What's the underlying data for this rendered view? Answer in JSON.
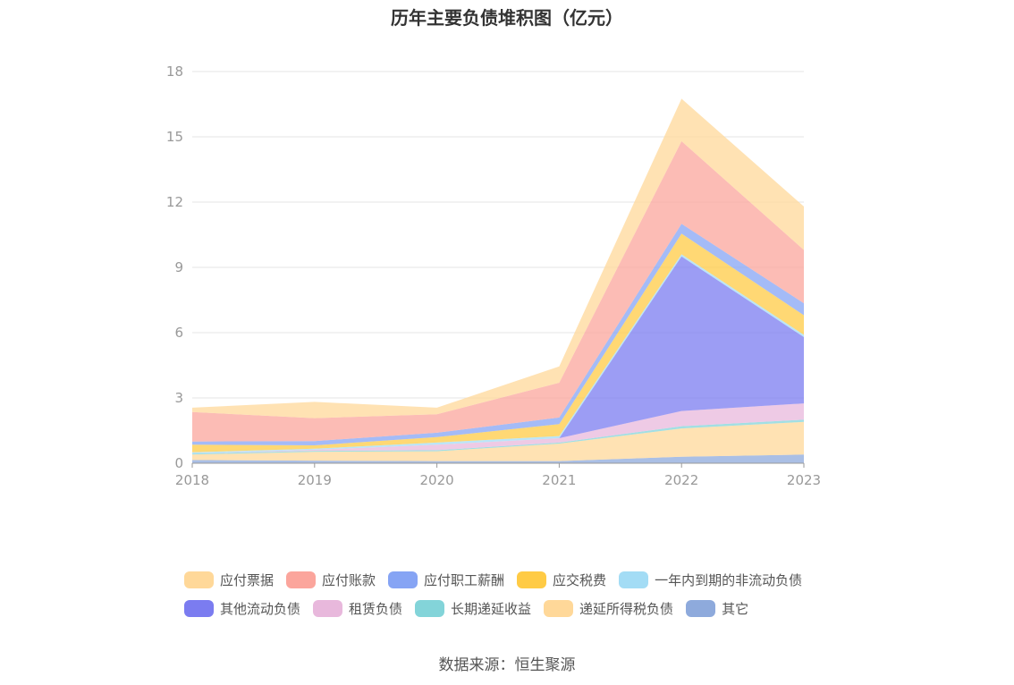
{
  "title": "历年主要负债堆积图（亿元）",
  "source": "数据来源：恒生聚源",
  "chart_data": {
    "type": "area",
    "stacked": true,
    "x": [
      "2018",
      "2019",
      "2020",
      "2021",
      "2022",
      "2023"
    ],
    "ylim": [
      0,
      18
    ],
    "yticks": [
      "0",
      "3",
      "6",
      "9",
      "12",
      "15",
      "18"
    ],
    "grid": true,
    "legend_position": "bottom",
    "series": [
      {
        "name": "其它",
        "color": "#8eaadc",
        "values": [
          0.15,
          0.12,
          0.1,
          0.1,
          0.3,
          0.4
        ]
      },
      {
        "name": "递延所得税负债",
        "color": "#ffd899",
        "values": [
          0.25,
          0.4,
          0.45,
          0.8,
          1.3,
          1.5
        ]
      },
      {
        "name": "长期递延收益",
        "color": "#83d4d9",
        "values": [
          0.05,
          0.05,
          0.05,
          0.05,
          0.1,
          0.1
        ]
      },
      {
        "name": "租赁负债",
        "color": "#e8b8dc",
        "values": [
          0.0,
          0.05,
          0.25,
          0.2,
          0.7,
          0.75
        ]
      },
      {
        "name": "其他流动负债",
        "color": "#7b7cf0",
        "values": [
          0.0,
          0.0,
          0.0,
          0.0,
          7.1,
          3.05
        ]
      },
      {
        "name": "一年内到期的非流动负债",
        "color": "#a3dcf5",
        "values": [
          0.05,
          0.05,
          0.1,
          0.1,
          0.1,
          0.1
        ]
      },
      {
        "name": "应交税费",
        "color": "#ffcb45",
        "values": [
          0.35,
          0.15,
          0.25,
          0.55,
          0.95,
          0.9
        ]
      },
      {
        "name": "应付职工薪酬",
        "color": "#86a4f4",
        "values": [
          0.15,
          0.2,
          0.2,
          0.3,
          0.45,
          0.55
        ]
      },
      {
        "name": "应付账款",
        "color": "#fba59c",
        "values": [
          1.35,
          1.05,
          0.85,
          1.6,
          3.8,
          2.45
        ]
      },
      {
        "name": "应付票据",
        "color": "#ffd899",
        "values": [
          0.2,
          0.75,
          0.3,
          0.75,
          1.95,
          2.0
        ]
      }
    ],
    "legend_order": [
      "应付票据",
      "应付账款",
      "应付职工薪酬",
      "应交税费",
      "一年内到期的非流动负债",
      "其他流动负债",
      "租赁负债",
      "长期递延收益",
      "递延所得税负债",
      "其它"
    ]
  }
}
